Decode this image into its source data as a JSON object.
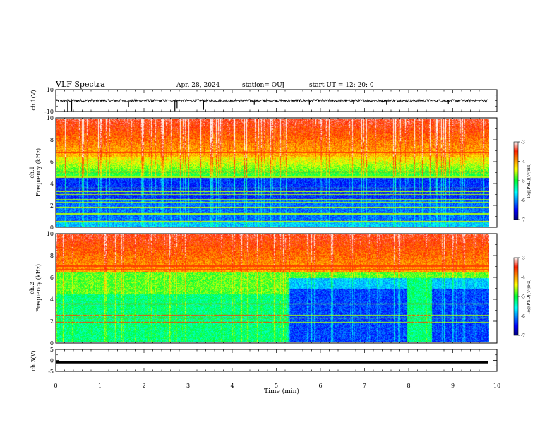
{
  "header": {
    "title": "VLF Spectra",
    "date": "Apr. 28, 2024",
    "station": "station= OUJ",
    "start": "start UT =  12: 20: 0"
  },
  "chart_data": [
    {
      "type": "line",
      "name": "ch1-waveform",
      "ylabel": "ch.1(V)",
      "ylim": [
        -10,
        10
      ],
      "yticks": [
        "10",
        "-10"
      ],
      "xlim": [
        0,
        10
      ],
      "baseline": 0,
      "noise_amplitude": 1.2,
      "spikes": [
        [
          0.27,
          -9.8
        ],
        [
          0.36,
          -9.5
        ],
        [
          1.65,
          -6
        ],
        [
          2.7,
          -9.5
        ],
        [
          2.75,
          -7
        ],
        [
          3.35,
          -8.5
        ],
        [
          4.5,
          -4
        ],
        [
          5.75,
          -4
        ],
        [
          6.75,
          -3.5
        ],
        [
          7.5,
          -4
        ],
        [
          8.9,
          -3
        ]
      ]
    },
    {
      "type": "heatmap",
      "name": "ch1-spectrogram",
      "ylabel": "ch.1\nFrequency (kHz)",
      "ylim": [
        0,
        10
      ],
      "yticks": [
        "0",
        "2",
        "4",
        "6",
        "8",
        "10"
      ],
      "xlim": [
        0,
        10
      ],
      "colorbar": {
        "label": "log(PSD)(V²/Hz)",
        "range": [
          -7,
          -3
        ],
        "ticks": [
          "-3",
          "-4",
          "-5",
          "-6",
          "-7"
        ]
      },
      "lines_kHz": [
        0.5,
        1.2,
        1.8,
        2.3,
        2.55,
        3.0,
        3.3,
        3.6,
        4.6,
        5.1,
        6.9
      ]
    },
    {
      "type": "heatmap",
      "name": "ch2-spectrogram",
      "ylabel": "ch.2\nFrequency (kHz)",
      "ylim": [
        0,
        10
      ],
      "yticks": [
        "0",
        "2",
        "4",
        "6",
        "8",
        "10"
      ],
      "xlim": [
        0,
        10
      ],
      "colorbar": {
        "label": "log(PSD)(V²/Hz)",
        "range": [
          -7,
          -3
        ],
        "ticks": [
          "-3",
          "-4",
          "-5",
          "-6",
          "-7"
        ]
      },
      "lines_kHz": [
        1.9,
        2.3,
        2.55,
        3.6,
        6.8,
        7.1
      ],
      "regime_change_min": 5.25
    },
    {
      "type": "line",
      "name": "ch3-waveform",
      "ylabel": "ch.3(V)",
      "ylim": [
        -5,
        5
      ],
      "yticks": [
        "5",
        "0",
        "-5"
      ],
      "xlim": [
        0,
        10
      ],
      "baseline": -0.9
    }
  ],
  "xaxis": {
    "label": "Time (min)",
    "ticks": [
      "0",
      "1",
      "2",
      "3",
      "4",
      "5",
      "6",
      "7",
      "8",
      "9",
      "10"
    ]
  },
  "colors": {
    "ink": "#000000",
    "background": "#ffffff"
  }
}
